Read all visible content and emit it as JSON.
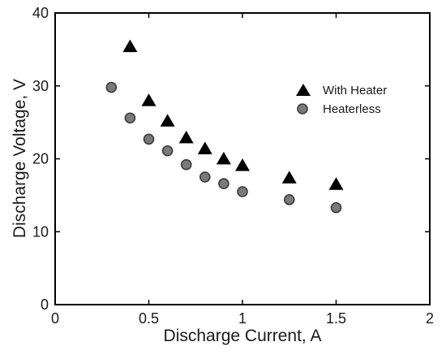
{
  "chart_data": {
    "type": "scatter",
    "xlabel": "Discharge Current, A",
    "ylabel": "Discharge Voltage, V",
    "xlim": [
      0,
      2
    ],
    "ylim": [
      0,
      40
    ],
    "xticks": [
      0,
      0.5,
      1,
      1.5,
      2
    ],
    "yticks": [
      0,
      10,
      20,
      30,
      40
    ],
    "xtick_labels": [
      "0",
      "0.5",
      "1",
      "1.5",
      "2"
    ],
    "ytick_labels": [
      "0",
      "10",
      "20",
      "30",
      "40"
    ],
    "grid": false,
    "legend_position": "upper-right",
    "series": [
      {
        "name": "With Heater",
        "marker": "triangle",
        "color": "#000000",
        "x": [
          0.4,
          0.5,
          0.6,
          0.7,
          0.8,
          0.9,
          1.0,
          1.25,
          1.5
        ],
        "y": [
          35.3,
          27.9,
          25.1,
          22.8,
          21.3,
          19.9,
          19.0,
          17.3,
          16.4
        ]
      },
      {
        "name": "Heaterless",
        "marker": "circle",
        "color": "#7a7a7a",
        "x": [
          0.3,
          0.4,
          0.5,
          0.6,
          0.7,
          0.8,
          0.9,
          1.0,
          1.25,
          1.5
        ],
        "y": [
          29.8,
          25.6,
          22.7,
          21.1,
          19.2,
          17.5,
          16.6,
          15.5,
          14.4,
          13.3
        ]
      }
    ]
  }
}
